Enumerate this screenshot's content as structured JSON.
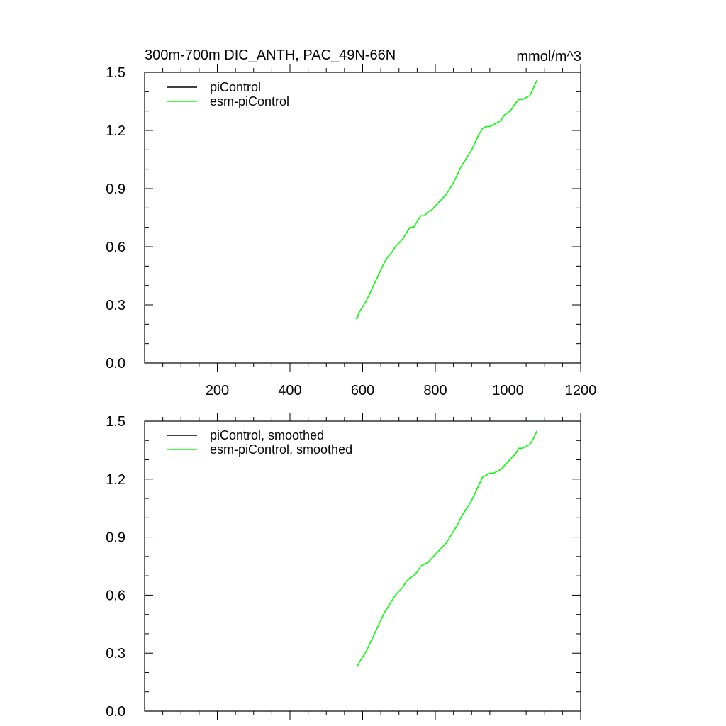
{
  "chart_data": [
    {
      "type": "line",
      "title": "300m-700m DIC_ANTH, PAC_49N-66N",
      "units": "mmol/m^3",
      "xlim": [
        0,
        1200
      ],
      "ylim": [
        0.0,
        1.5
      ],
      "xticks": [
        200,
        400,
        600,
        800,
        1000,
        1200
      ],
      "yticks": [
        0.0,
        0.3,
        0.6,
        0.9,
        1.2,
        1.5
      ],
      "ytick_labels": [
        "0.0",
        "0.3",
        "0.6",
        "0.9",
        "1.2",
        "1.5"
      ],
      "xtick_labels": [
        "200",
        "400",
        "600",
        "800",
        "1000",
        "1200"
      ],
      "show_xtick_labels": true,
      "legend": "top-left",
      "series": [
        {
          "name": "piControl",
          "color": "#000000",
          "x": [],
          "y": []
        },
        {
          "name": "esm-piControl",
          "color": "#00ff00",
          "x": [
            580,
            585,
            590,
            600,
            610,
            620,
            630,
            640,
            650,
            660,
            670,
            680,
            690,
            700,
            710,
            720,
            730,
            740,
            750,
            760,
            770,
            780,
            790,
            800,
            810,
            820,
            830,
            840,
            850,
            860,
            870,
            880,
            890,
            900,
            910,
            920,
            930,
            940,
            950,
            960,
            970,
            980,
            990,
            1000,
            1010,
            1020,
            1030,
            1040,
            1050,
            1060,
            1070,
            1075,
            1080
          ],
          "y": [
            0.23,
            0.23,
            0.26,
            0.29,
            0.32,
            0.36,
            0.4,
            0.44,
            0.48,
            0.52,
            0.55,
            0.57,
            0.6,
            0.62,
            0.64,
            0.67,
            0.7,
            0.7,
            0.73,
            0.76,
            0.76,
            0.78,
            0.79,
            0.81,
            0.83,
            0.85,
            0.87,
            0.9,
            0.93,
            0.97,
            1.01,
            1.04,
            1.07,
            1.1,
            1.14,
            1.18,
            1.21,
            1.22,
            1.22,
            1.23,
            1.24,
            1.25,
            1.28,
            1.29,
            1.31,
            1.34,
            1.36,
            1.36,
            1.37,
            1.38,
            1.42,
            1.44,
            1.46
          ]
        }
      ]
    },
    {
      "type": "line",
      "title": "",
      "units": "",
      "xlim": [
        0,
        1200
      ],
      "ylim": [
        0.0,
        1.5
      ],
      "xticks": [
        200,
        400,
        600,
        800,
        1000,
        1200
      ],
      "yticks": [
        0.0,
        0.3,
        0.6,
        0.9,
        1.2,
        1.5
      ],
      "ytick_labels": [
        "0.0",
        "0.3",
        "0.6",
        "0.9",
        "1.2",
        "1.5"
      ],
      "xtick_labels": [],
      "show_xtick_labels": false,
      "legend": "top-left",
      "series": [
        {
          "name": "piControl, smoothed",
          "color": "#000000",
          "x": [],
          "y": []
        },
        {
          "name": "esm-piControl, smoothed",
          "color": "#00ff00",
          "x": [
            585,
            590,
            600,
            610,
            620,
            630,
            640,
            650,
            660,
            670,
            680,
            690,
            700,
            710,
            720,
            730,
            740,
            750,
            760,
            770,
            780,
            790,
            800,
            810,
            820,
            830,
            840,
            850,
            860,
            870,
            880,
            890,
            900,
            910,
            920,
            930,
            940,
            950,
            960,
            970,
            980,
            990,
            1000,
            1010,
            1020,
            1030,
            1040,
            1050,
            1060,
            1070,
            1075,
            1080
          ],
          "y": [
            0.23,
            0.25,
            0.28,
            0.31,
            0.35,
            0.39,
            0.43,
            0.47,
            0.51,
            0.54,
            0.57,
            0.6,
            0.62,
            0.64,
            0.67,
            0.69,
            0.7,
            0.72,
            0.75,
            0.76,
            0.77,
            0.79,
            0.81,
            0.83,
            0.85,
            0.87,
            0.9,
            0.93,
            0.96,
            1.0,
            1.03,
            1.06,
            1.09,
            1.13,
            1.17,
            1.21,
            1.22,
            1.23,
            1.23,
            1.24,
            1.25,
            1.27,
            1.29,
            1.31,
            1.33,
            1.36,
            1.36,
            1.37,
            1.38,
            1.41,
            1.43,
            1.45
          ]
        }
      ]
    }
  ]
}
